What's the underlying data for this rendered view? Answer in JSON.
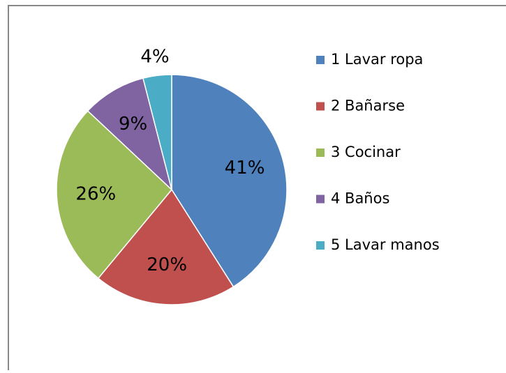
{
  "chart_data": {
    "type": "pie",
    "categories": [
      "1 Lavar ropa",
      "2 Bañarse",
      "3 Cocinar",
      "4 Baños",
      "5 Lavar manos"
    ],
    "values": [
      41,
      20,
      26,
      9,
      4
    ],
    "value_labels": [
      "41%",
      "20%",
      "26%",
      "9%",
      "4%"
    ],
    "colors": [
      "#4f81bd",
      "#c0504d",
      "#9bbb59",
      "#8064a2",
      "#4bacc6"
    ],
    "legend": "right"
  }
}
